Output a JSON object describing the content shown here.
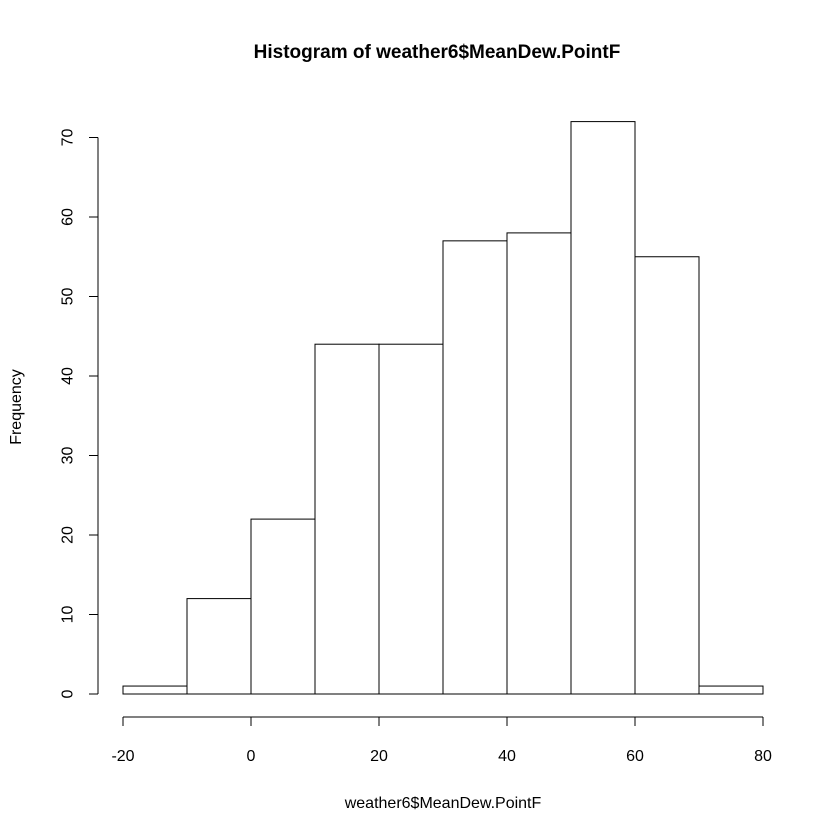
{
  "chart_data": {
    "type": "bar",
    "subtype": "histogram",
    "title": "Histogram of weather6$MeanDew.PointF",
    "xlabel": "weather6$MeanDew.PointF",
    "ylabel": "Frequency",
    "bins": [
      {
        "from": -20,
        "to": -10,
        "count": 1
      },
      {
        "from": -10,
        "to": 0,
        "count": 12
      },
      {
        "from": 0,
        "to": 10,
        "count": 22
      },
      {
        "from": 10,
        "to": 20,
        "count": 44
      },
      {
        "from": 20,
        "to": 30,
        "count": 44
      },
      {
        "from": 30,
        "to": 40,
        "count": 57
      },
      {
        "from": 40,
        "to": 50,
        "count": 58
      },
      {
        "from": 50,
        "to": 60,
        "count": 72
      },
      {
        "from": 60,
        "to": 70,
        "count": 55
      },
      {
        "from": 70,
        "to": 80,
        "count": 1
      }
    ],
    "xlim": [
      -20,
      80
    ],
    "ylim": [
      0,
      72
    ],
    "x_ticks": [
      -20,
      0,
      20,
      40,
      60,
      80
    ],
    "x_tick_labels": [
      "-20",
      "0",
      "20",
      "40",
      "60",
      "80"
    ],
    "y_ticks": [
      0,
      10,
      20,
      30,
      40,
      50,
      60,
      70
    ],
    "y_tick_labels": [
      "0",
      "10",
      "20",
      "30",
      "40",
      "50",
      "60",
      "70"
    ],
    "grid": false,
    "legend": "none"
  }
}
